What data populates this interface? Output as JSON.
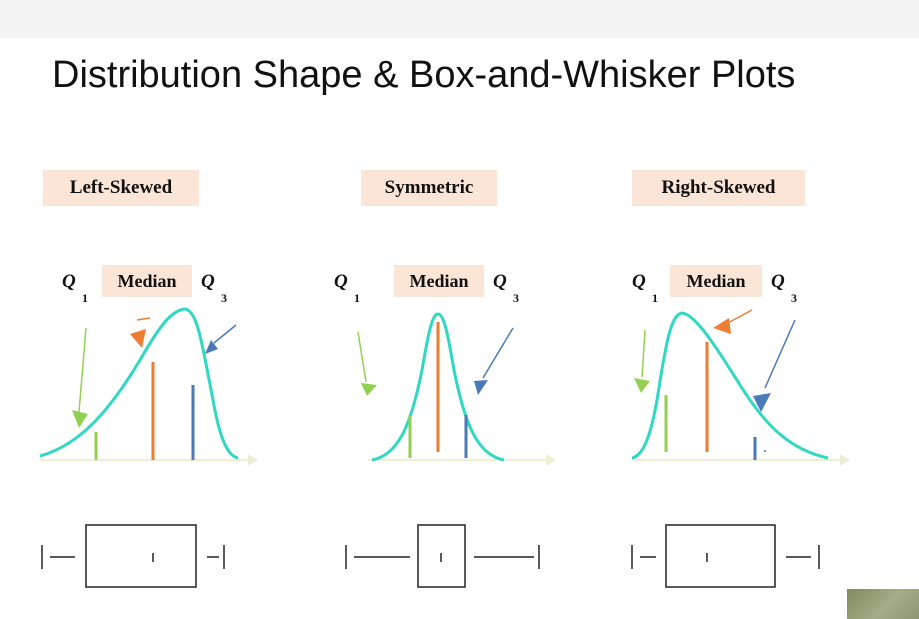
{
  "title": "Distribution Shape & Box-and-Whisker Plots",
  "panels": [
    {
      "label": "Left-Skewed"
    },
    {
      "label": "Symmetric"
    },
    {
      "label": "Right-Skewed"
    }
  ],
  "quartile_labels": {
    "q": "Q",
    "q1_sub": "1",
    "median": "Median",
    "q3_sub": "3"
  },
  "colors": {
    "curve": "#2ed8c3",
    "q1": "#92d050",
    "median": "#ed7d31",
    "q3": "#4a7ab8",
    "label_bg": "#fbe5d6",
    "axis": "#efeed3"
  }
}
